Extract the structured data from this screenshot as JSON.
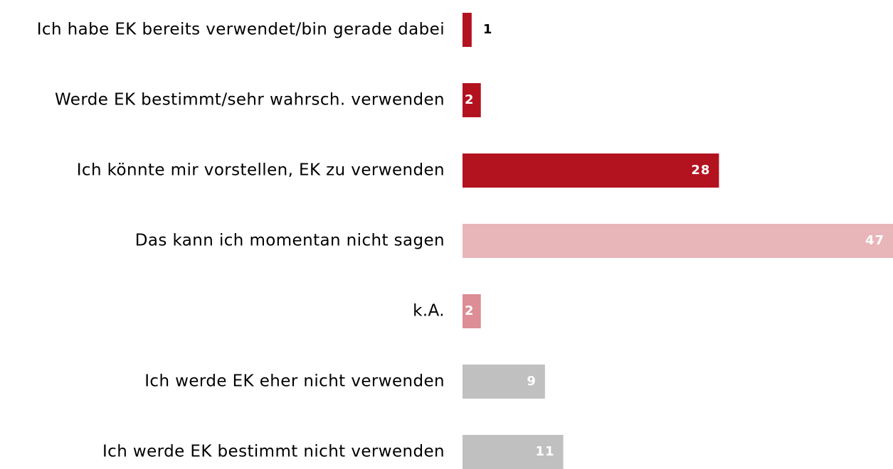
{
  "chart_data": {
    "type": "bar",
    "orientation": "horizontal",
    "categories": [
      "Ich habe EK bereits verwendet/bin gerade dabei",
      "Werde EK bestimmt/sehr wahrsch. verwenden",
      "Ich könnte mir vorstellen, EK zu verwenden",
      "Das kann ich momentan nicht sagen",
      "k.A.",
      "Ich werde EK eher nicht verwenden",
      "Ich werde EK bestimmt nicht verwenden"
    ],
    "values": [
      1,
      2,
      28,
      47,
      2,
      9,
      11
    ],
    "colors": [
      "#b3121f",
      "#b3121f",
      "#b3121f",
      "#e8b5b9",
      "#dd8d95",
      "#c0c0c0",
      "#c0c0c0"
    ]
  }
}
